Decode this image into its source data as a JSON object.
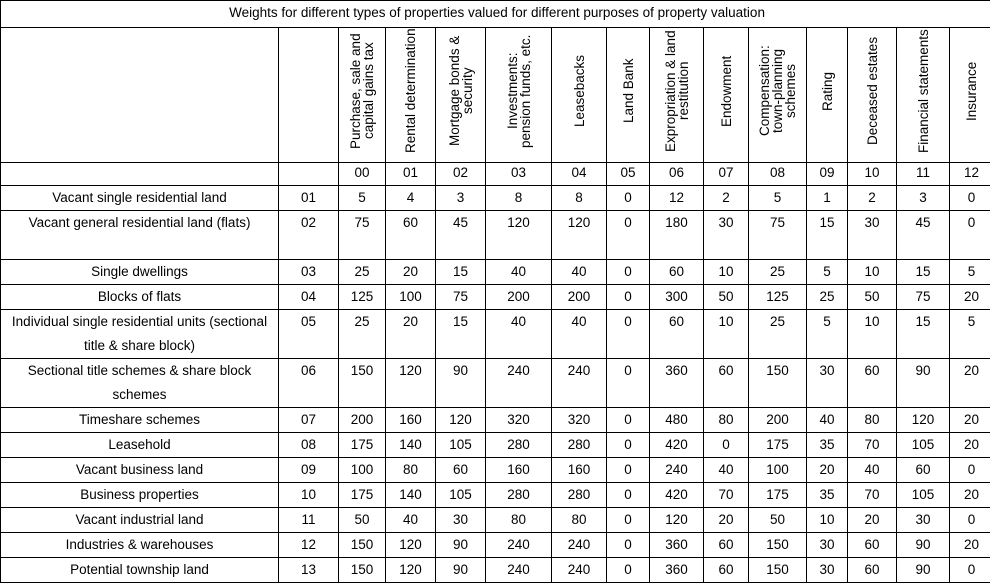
{
  "title": "Weights for different types of properties valued for different purposes of property valuation",
  "purposes": [
    {
      "label": "Purchase, sale and capital gains tax",
      "code": "00"
    },
    {
      "label": "Rental determination",
      "code": "01"
    },
    {
      "label": "Mortgage bonds & security",
      "code": "02"
    },
    {
      "label": "Investments: pension funds, etc.",
      "code": "03"
    },
    {
      "label": "Leasebacks",
      "code": "04"
    },
    {
      "label": "Land Bank",
      "code": "05"
    },
    {
      "label": "Expropriation & land restitution",
      "code": "06"
    },
    {
      "label": "Endowment",
      "code": "07"
    },
    {
      "label": "Compensation: town-planning schemes",
      "code": "08"
    },
    {
      "label": "Rating",
      "code": "09"
    },
    {
      "label": "Deceased estates",
      "code": "10"
    },
    {
      "label": "Financial statements",
      "code": "11"
    },
    {
      "label": "Insurance",
      "code": "12"
    }
  ],
  "rows": [
    {
      "name": "Vacant single residential land",
      "code": "01",
      "values": [
        "5",
        "4",
        "3",
        "8",
        "8",
        "0",
        "12",
        "2",
        "5",
        "1",
        "2",
        "3",
        "0"
      ]
    },
    {
      "name": "Vacant general residential land (flats)",
      "code": "02",
      "values": [
        "75",
        "60",
        "45",
        "120",
        "120",
        "0",
        "180",
        "30",
        "75",
        "15",
        "30",
        "45",
        "0"
      ]
    },
    {
      "name": "Single dwellings",
      "code": "03",
      "values": [
        "25",
        "20",
        "15",
        "40",
        "40",
        "0",
        "60",
        "10",
        "25",
        "5",
        "10",
        "15",
        "5"
      ]
    },
    {
      "name": "Blocks of flats",
      "code": "04",
      "values": [
        "125",
        "100",
        "75",
        "200",
        "200",
        "0",
        "300",
        "50",
        "125",
        "25",
        "50",
        "75",
        "20"
      ]
    },
    {
      "name": "Individual single residential units (sectional title & share block)",
      "code": "05",
      "values": [
        "25",
        "20",
        "15",
        "40",
        "40",
        "0",
        "60",
        "10",
        "25",
        "5",
        "10",
        "15",
        "5"
      ]
    },
    {
      "name": "Sectional title schemes & share block schemes",
      "code": "06",
      "values": [
        "150",
        "120",
        "90",
        "240",
        "240",
        "0",
        "360",
        "60",
        "150",
        "30",
        "60",
        "90",
        "20"
      ]
    },
    {
      "name": "Timeshare schemes",
      "code": "07",
      "values": [
        "200",
        "160",
        "120",
        "320",
        "320",
        "0",
        "480",
        "80",
        "200",
        "40",
        "80",
        "120",
        "20"
      ]
    },
    {
      "name": "Leasehold",
      "code": "08",
      "values": [
        "175",
        "140",
        "105",
        "280",
        "280",
        "0",
        "420",
        "0",
        "175",
        "35",
        "70",
        "105",
        "20"
      ]
    },
    {
      "name": "Vacant business land",
      "code": "09",
      "values": [
        "100",
        "80",
        "60",
        "160",
        "160",
        "0",
        "240",
        "40",
        "100",
        "20",
        "40",
        "60",
        "0"
      ]
    },
    {
      "name": "Business properties",
      "code": "10",
      "values": [
        "175",
        "140",
        "105",
        "280",
        "280",
        "0",
        "420",
        "70",
        "175",
        "35",
        "70",
        "105",
        "20"
      ]
    },
    {
      "name": "Vacant industrial land",
      "code": "11",
      "values": [
        "50",
        "40",
        "30",
        "80",
        "80",
        "0",
        "120",
        "20",
        "50",
        "10",
        "20",
        "30",
        "0"
      ]
    },
    {
      "name": "Industries & warehouses",
      "code": "12",
      "values": [
        "150",
        "120",
        "90",
        "240",
        "240",
        "0",
        "360",
        "60",
        "150",
        "30",
        "60",
        "90",
        "20"
      ]
    },
    {
      "name": "Potential township land",
      "code": "13",
      "values": [
        "150",
        "120",
        "90",
        "240",
        "240",
        "0",
        "360",
        "60",
        "150",
        "30",
        "60",
        "90",
        "0"
      ]
    }
  ]
}
